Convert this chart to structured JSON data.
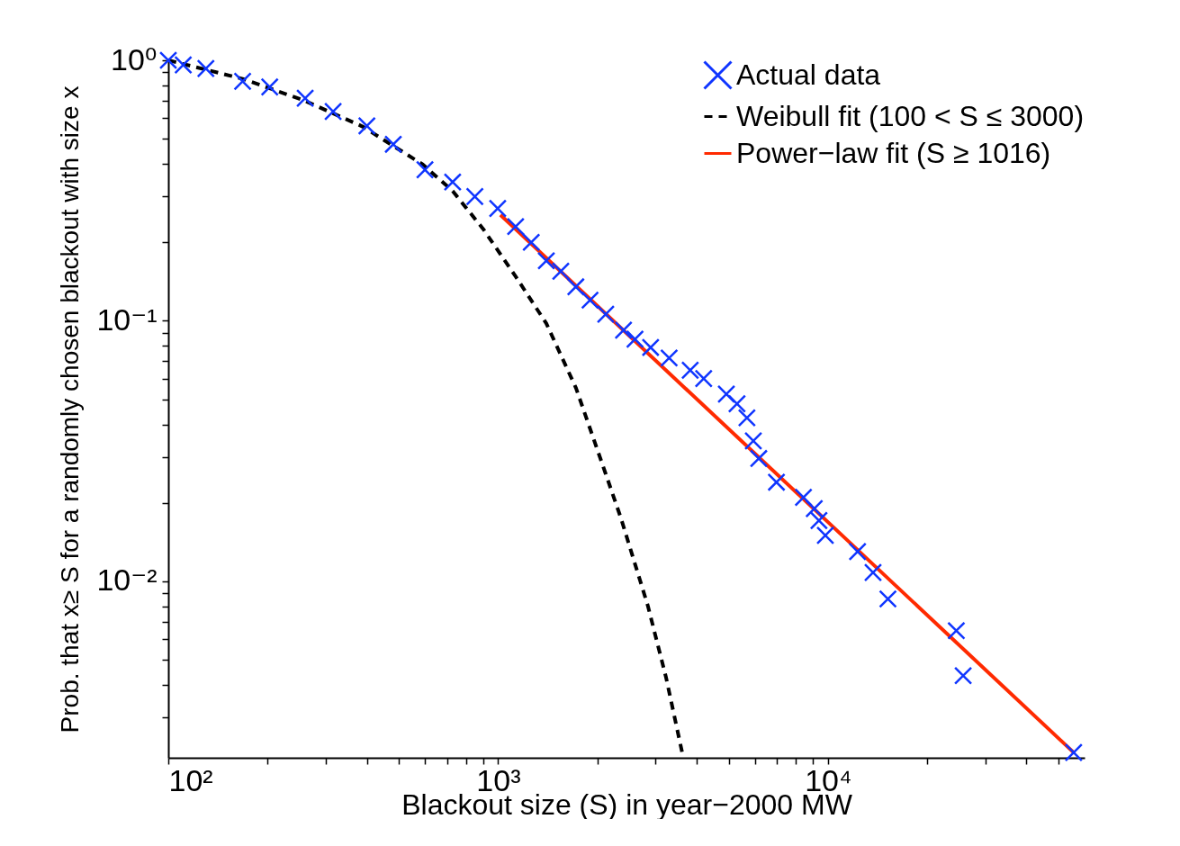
{
  "chart_data": {
    "type": "scatter",
    "xlabel": "Blackout size (S) in year−2000 MW",
    "ylabel": "Prob. that x≥ S for a randomly chosen blackout with size x",
    "log": "xy",
    "legend": "top right",
    "grid": false,
    "xlim": [
      100,
      60000
    ],
    "ylim": [
      0.0021,
      1
    ],
    "xticks": [
      {
        "value": 100,
        "label": "10²"
      },
      {
        "value": 200,
        "label": null
      },
      {
        "value": 300,
        "label": null
      },
      {
        "value": 400,
        "label": null
      },
      {
        "value": 500,
        "label": null
      },
      {
        "value": 600,
        "label": null
      },
      {
        "value": 700,
        "label": null
      },
      {
        "value": 800,
        "label": null
      },
      {
        "value": 900,
        "label": null
      },
      {
        "value": 1000,
        "label": "10³"
      },
      {
        "value": 2000,
        "label": null
      },
      {
        "value": 3000,
        "label": null
      },
      {
        "value": 4000,
        "label": null
      },
      {
        "value": 5000,
        "label": null
      },
      {
        "value": 6000,
        "label": null
      },
      {
        "value": 7000,
        "label": null
      },
      {
        "value": 8000,
        "label": null
      },
      {
        "value": 9000,
        "label": null
      },
      {
        "value": 10000,
        "label": "10⁴"
      },
      {
        "value": 20000,
        "label": null
      },
      {
        "value": 30000,
        "label": null
      },
      {
        "value": 40000,
        "label": null
      },
      {
        "value": 50000,
        "label": null
      }
    ],
    "yticks": [
      {
        "value": 0.003,
        "label": null
      },
      {
        "value": 0.004,
        "label": null
      },
      {
        "value": 0.005,
        "label": null
      },
      {
        "value": 0.006,
        "label": null
      },
      {
        "value": 0.007,
        "label": null
      },
      {
        "value": 0.008,
        "label": null
      },
      {
        "value": 0.009,
        "label": null
      },
      {
        "value": 0.01,
        "label": "10⁻²"
      },
      {
        "value": 0.02,
        "label": null
      },
      {
        "value": 0.03,
        "label": null
      },
      {
        "value": 0.04,
        "label": null
      },
      {
        "value": 0.05,
        "label": null
      },
      {
        "value": 0.06,
        "label": null
      },
      {
        "value": 0.07,
        "label": null
      },
      {
        "value": 0.08,
        "label": null
      },
      {
        "value": 0.09,
        "label": null
      },
      {
        "value": 0.1,
        "label": "10⁻¹"
      },
      {
        "value": 0.2,
        "label": null
      },
      {
        "value": 0.3,
        "label": null
      },
      {
        "value": 0.4,
        "label": null
      },
      {
        "value": 0.5,
        "label": null
      },
      {
        "value": 0.6,
        "label": null
      },
      {
        "value": 0.7,
        "label": null
      },
      {
        "value": 0.8,
        "label": null
      },
      {
        "value": 0.9,
        "label": null
      },
      {
        "value": 1,
        "label": "10⁰"
      }
    ],
    "series": [
      {
        "name": "Actual data",
        "marker": "cross",
        "color": "#0f35ff",
        "x": [
          100,
          111,
          130,
          168,
          203,
          260,
          316,
          400,
          481,
          600,
          728,
          850,
          997,
          1130,
          1260,
          1400,
          1549,
          1720,
          1900,
          2120,
          2400,
          2600,
          2900,
          3300,
          3823,
          4200,
          4920,
          5300,
          5680,
          5940,
          6170,
          6980,
          8430,
          9090,
          9390,
          9820,
          12300,
          13700,
          15200,
          24500,
          25700,
          55600
        ],
        "values": [
          1.0,
          0.96,
          0.93,
          0.83,
          0.79,
          0.715,
          0.636,
          0.56,
          0.476,
          0.38,
          0.341,
          0.3,
          0.27,
          0.23,
          0.2,
          0.17,
          0.155,
          0.135,
          0.12,
          0.106,
          0.092,
          0.085,
          0.079,
          0.072,
          0.0646,
          0.06,
          0.0523,
          0.048,
          0.0424,
          0.0346,
          0.0296,
          0.024,
          0.021,
          0.019,
          0.0171,
          0.015,
          0.013,
          0.0108,
          0.00855,
          0.00646,
          0.00434,
          0.0022
        ]
      },
      {
        "name": "Weibull fit (100 < S ≤ 3000)",
        "type": "line",
        "line_style": "dashed",
        "color": "#000000",
        "x": [
          100,
          168,
          256,
          388,
          591,
          728,
          901,
          1130,
          1400,
          1722,
          2118,
          2356,
          2845,
          3226,
          3614
        ],
        "values": [
          1.0,
          0.849,
          0.704,
          0.557,
          0.398,
          0.315,
          0.225,
          0.148,
          0.0977,
          0.0552,
          0.0259,
          0.0175,
          0.00804,
          0.0043,
          0.0022
        ]
      },
      {
        "name": "Power−law fit (S ≥ 1016)",
        "type": "line",
        "line_style": "solid",
        "color": "#ff2a00",
        "x": [
          1016,
          55600
        ],
        "values": [
          0.255,
          0.0022
        ]
      }
    ]
  }
}
